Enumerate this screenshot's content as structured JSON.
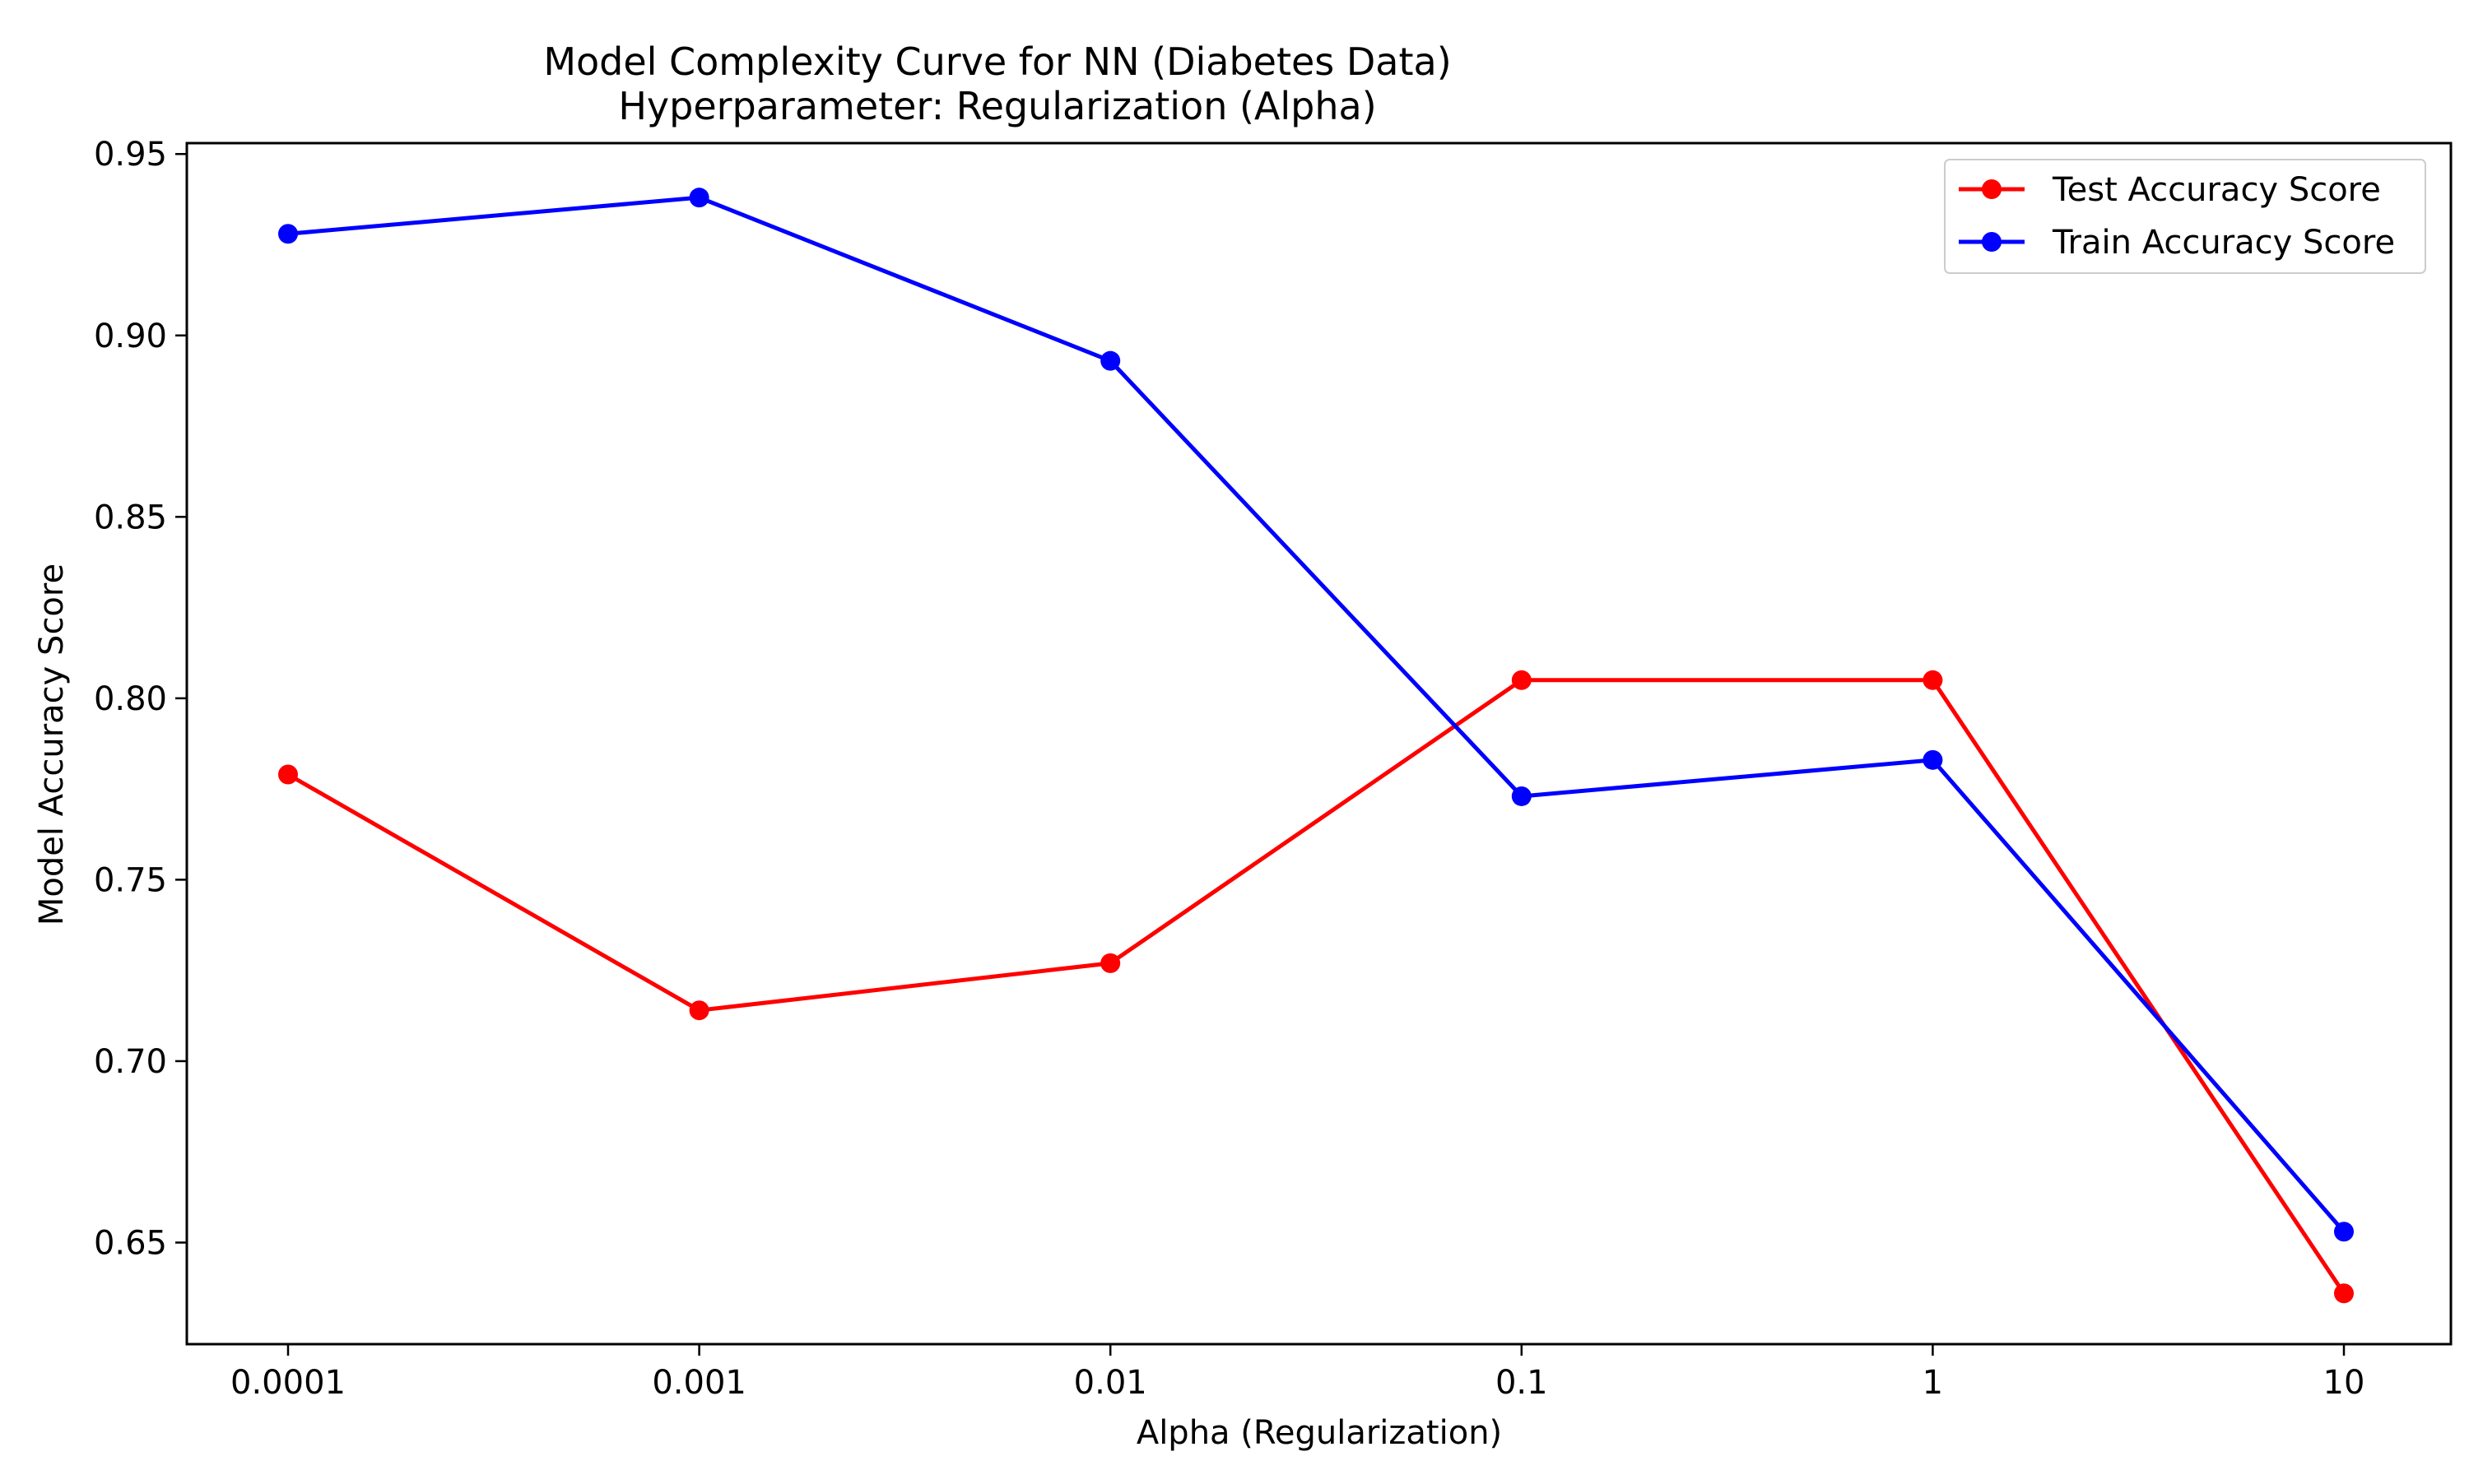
{
  "chart_data": {
    "type": "line",
    "title": "Model Complexity Curve for NN (Diabetes Data)",
    "subtitle": "Hyperparameter: Regularization (Alpha)",
    "xlabel": "Alpha (Regularization)",
    "ylabel": "Model Accuracy Score",
    "x_scale": "log",
    "categories": [
      "0.0001",
      "0.001",
      "0.01",
      "0.1",
      "1",
      "10"
    ],
    "x": [
      0.0001,
      0.001,
      0.01,
      0.1,
      1,
      10
    ],
    "ylim": [
      0.622,
      0.953
    ],
    "yticks": [
      0.65,
      0.7,
      0.75,
      0.8,
      0.85,
      0.9,
      0.95
    ],
    "ytick_labels": [
      "0.65",
      "0.70",
      "0.75",
      "0.80",
      "0.85",
      "0.90",
      "0.95"
    ],
    "grid": false,
    "legend_position": "top-right",
    "series": [
      {
        "name": "Test Accuracy Score",
        "color": "#ff0000",
        "marker": "circle",
        "values": [
          0.779,
          0.714,
          0.727,
          0.805,
          0.805,
          0.636
        ]
      },
      {
        "name": "Train Accuracy Score",
        "color": "#0000ff",
        "marker": "circle",
        "values": [
          0.928,
          0.938,
          0.893,
          0.773,
          0.783,
          0.653
        ]
      }
    ]
  }
}
